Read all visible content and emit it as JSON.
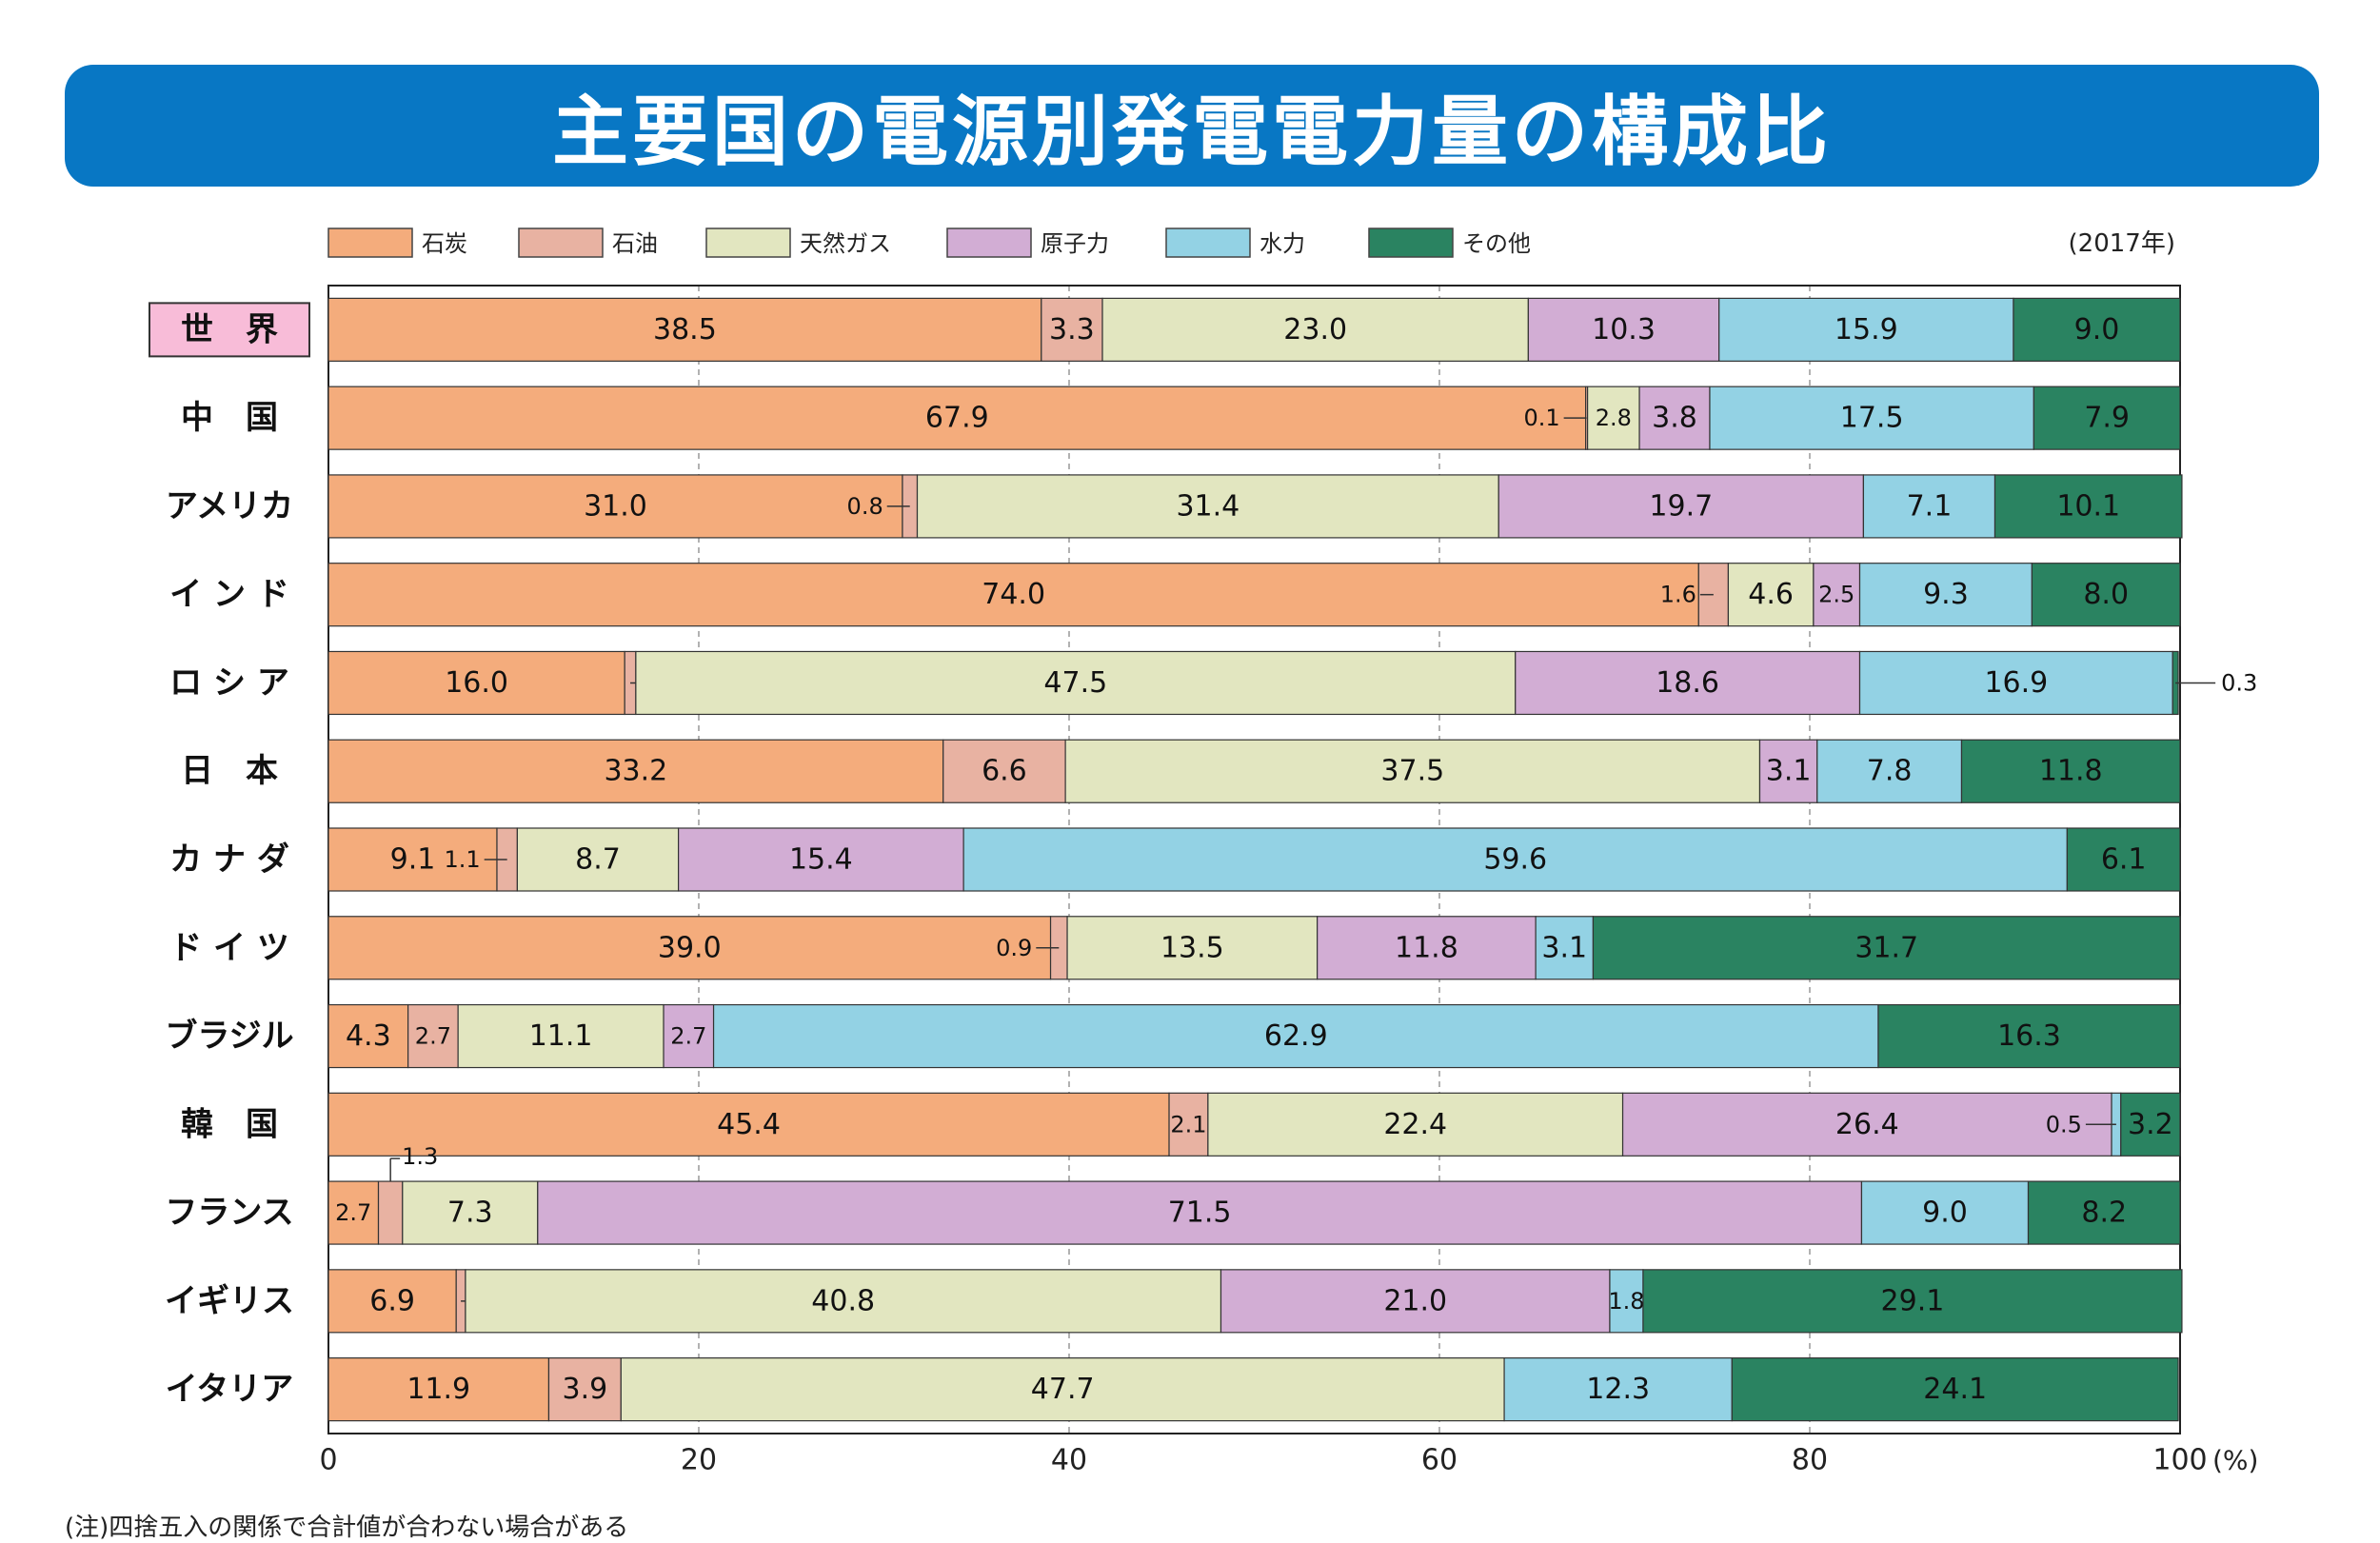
{
  "title": "主要国の電源別発電電力量の構成比",
  "year_label": "(2017年)",
  "footnote": "(注)四捨五入の関係で合計値が合わない場合がある",
  "colors": {
    "banner": "#0877c4",
    "石炭": "#f4ac7c",
    "石油": "#e8b2a2",
    "天然ガス": "#e2e6c0",
    "原子力": "#d2add4",
    "水力": "#93d2e4",
    "その他": "#2a8361"
  },
  "chart_data": {
    "type": "bar",
    "orientation": "horizontal-stacked",
    "title": "主要国の電源別発電電力量の構成比",
    "subtitle": "(2017年)",
    "xlabel": "",
    "ylabel": "",
    "x_unit": "(%)",
    "xlim": [
      0,
      100
    ],
    "x_ticks": [
      0,
      20,
      40,
      60,
      80,
      100
    ],
    "grid": "vertical dashed",
    "legend_position": "top",
    "categories": [
      "世　界",
      "中　国",
      "アメリカ",
      "イ ン ド",
      "ロ シ ア",
      "日　本",
      "カ ナ ダ",
      "ド イ ツ",
      "ブラジル",
      "韓　国",
      "フランス",
      "イギリス",
      "イタリア"
    ],
    "highlight_category": "世　界",
    "series": [
      {
        "name": "石炭",
        "values": [
          "38.5",
          "67.9",
          "31.0",
          "74.0",
          "16.0",
          "33.2",
          "9.1",
          "39.0",
          "4.3",
          "45.4",
          "2.7",
          "6.9",
          "11.9"
        ]
      },
      {
        "name": "石油",
        "values": [
          "3.3",
          "0.1",
          "0.8",
          "1.6",
          "0.6",
          "6.6",
          "1.1",
          "0.9",
          "2.7",
          "2.1",
          "1.3",
          "0.5",
          "3.9"
        ]
      },
      {
        "name": "天然ガス",
        "values": [
          "23.0",
          "2.8",
          "31.4",
          "4.6",
          "47.5",
          "37.5",
          "8.7",
          "13.5",
          "11.1",
          "22.4",
          "7.3",
          "40.8",
          "47.7"
        ]
      },
      {
        "name": "原子力",
        "values": [
          "10.3",
          "3.8",
          "19.7",
          "2.5",
          "18.6",
          "3.1",
          "15.4",
          "11.8",
          "2.7",
          "26.4",
          "71.5",
          "21.0",
          "0"
        ]
      },
      {
        "name": "水力",
        "values": [
          "15.9",
          "17.5",
          "7.1",
          "9.3",
          "16.9",
          "7.8",
          "59.6",
          "3.1",
          "62.9",
          "0.5",
          "9.0",
          "1.8",
          "12.3"
        ]
      },
      {
        "name": "その他",
        "values": [
          "9.0",
          "7.9",
          "10.1",
          "8.0",
          "0.3",
          "11.8",
          "6.1",
          "31.7",
          "16.3",
          "3.2",
          "8.2",
          "29.1",
          "24.1"
        ]
      }
    ]
  }
}
